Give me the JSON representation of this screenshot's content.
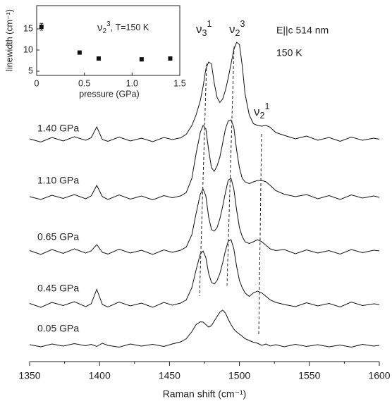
{
  "chart_data": [
    {
      "type": "line",
      "xlabel": "Raman shift (cm⁻¹)",
      "x": [
        1350,
        1358,
        1366,
        1374,
        1382,
        1390,
        1394,
        1398,
        1402,
        1406,
        1414,
        1422,
        1430,
        1438,
        1446,
        1452,
        1458,
        1462,
        1466,
        1469,
        1472,
        1474,
        1476,
        1478,
        1480,
        1482,
        1484,
        1486,
        1488,
        1490,
        1492,
        1494,
        1496,
        1498,
        1500,
        1502,
        1504,
        1507,
        1510,
        1513,
        1516,
        1519,
        1522,
        1526,
        1532,
        1540,
        1548,
        1556,
        1564,
        1572,
        1580,
        1588,
        1596,
        1600
      ],
      "series": [
        {
          "name": "1.40 GPa",
          "color": "#111111",
          "values": [
            63.2,
            62.3,
            63.6,
            62.6,
            63.8,
            62.8,
            63.5,
            66.6,
            63.0,
            62.5,
            63.7,
            62.6,
            63.4,
            62.4,
            63.6,
            63.0,
            63.5,
            64.5,
            67,
            70,
            74,
            78,
            83,
            85,
            84.5,
            79,
            75,
            73.5,
            74.5,
            77,
            80.5,
            84.5,
            88.5,
            90.6,
            90,
            84,
            76,
            70,
            67.5,
            67,
            66.8,
            67,
            66.5,
            65,
            64.2,
            63.2,
            64.0,
            62.8,
            63.6,
            62.5,
            63.7,
            62.8,
            63.4,
            63.1
          ]
        },
        {
          "name": "1.10 GPa",
          "color": "#111111",
          "values": [
            46.8,
            46.0,
            47.2,
            46.3,
            47.4,
            46.2,
            47.0,
            50,
            46.8,
            46.0,
            47.3,
            46.1,
            47.0,
            45.9,
            47.1,
            46.5,
            47.0,
            48,
            52,
            59,
            65,
            67,
            66,
            60,
            55,
            54,
            55.5,
            58,
            62,
            66,
            68.3,
            68.6,
            66.5,
            60,
            55,
            52,
            51,
            50.5,
            51,
            51.4,
            51.4,
            51,
            50,
            48.5,
            47.5,
            46.8,
            47.4,
            46.2,
            47.1,
            46.0,
            47.3,
            46.4,
            47.0,
            46.6
          ]
        },
        {
          "name": "0.65 GPa",
          "color": "#111111",
          "values": [
            31.5,
            30.4,
            31.8,
            30.7,
            32.0,
            30.8,
            31.4,
            33.2,
            31.0,
            30.5,
            31.9,
            30.8,
            31.6,
            30.4,
            31.7,
            31.0,
            31.6,
            32.5,
            36,
            42,
            47.5,
            49,
            47,
            41,
            37.5,
            37,
            38,
            40.5,
            44,
            48,
            51.5,
            52,
            49,
            43,
            38,
            35.5,
            34,
            33.5,
            34,
            34.6,
            34,
            33,
            32,
            31.5,
            31.8,
            30.6,
            31.7,
            30.8,
            31.5,
            30.5,
            31.8,
            30.9,
            31.6,
            31.4
          ]
        },
        {
          "name": "0.45 GPa",
          "color": "#111111",
          "values": [
            16.5,
            15.4,
            16.8,
            15.9,
            17.0,
            15.6,
            16.4,
            20.5,
            16.2,
            15.5,
            16.9,
            15.8,
            16.6,
            15.4,
            16.8,
            16.0,
            16.6,
            17.5,
            21,
            26,
            30.5,
            31.4,
            29.5,
            25,
            22.5,
            22,
            23,
            25,
            28,
            31.5,
            34.2,
            34.6,
            32,
            27,
            23,
            21,
            19.5,
            18.5,
            19.5,
            20,
            19.5,
            18.5,
            17.5,
            16.8,
            16.2,
            15.6,
            16.7,
            15.8,
            16.5,
            15.5,
            16.9,
            15.9,
            16.4,
            16.2
          ]
        },
        {
          "name": "0.05 GPa",
          "color": "#111111",
          "values": [
            4.8,
            4.2,
            5.0,
            4.4,
            5.1,
            4.5,
            4.9,
            4.3,
            5.2,
            4.6,
            4.1,
            5.0,
            4.4,
            4.9,
            4.3,
            5.0,
            5.6,
            6.5,
            8.5,
            10.5,
            11.3,
            11.2,
            10.5,
            9.8,
            10.2,
            11.5,
            12.8,
            14.0,
            14.6,
            13.8,
            12.0,
            10.5,
            9.2,
            8.4,
            7.8,
            7.2,
            6.5,
            6.0,
            5.5,
            5.2,
            4.6,
            5.0,
            4.4,
            4.8,
            4.2,
            4.9,
            4.3,
            4.8,
            4.2,
            4.7,
            4.1,
            4.9,
            4.4,
            4.6
          ]
        }
      ],
      "xlim": [
        1350,
        1600
      ],
      "ylim": [
        0,
        100
      ],
      "xticks": [
        1350,
        1400,
        1450,
        1500,
        1550,
        1600
      ],
      "xminorticks": [
        1375,
        1425,
        1475,
        1525,
        1575
      ],
      "annotations": [
        {
          "text": "E||c 514 nm"
        },
        {
          "text": "150 K"
        },
        {
          "text": "ν",
          "sub": "3",
          "sup": "1"
        },
        {
          "text": "ν",
          "sub": "2",
          "sup": "3"
        },
        {
          "text": "ν",
          "sub": "2",
          "sup": "1"
        }
      ]
    },
    {
      "type": "scatter",
      "xlabel": "pressure (GPa)",
      "ylabel": "linewidth (cm⁻¹)",
      "x": [
        0.05,
        0.45,
        0.65,
        1.1,
        1.4
      ],
      "values": [
        15.5,
        9.4,
        8.0,
        7.8,
        8.0
      ],
      "errors": [
        0.8,
        0.4,
        0.4,
        0.4,
        0.4
      ],
      "color": "#111111",
      "xlim": [
        0,
        1.5
      ],
      "ylim": [
        4,
        20.5
      ],
      "xticks": [
        0,
        {
          "value": 0.5,
          "label": "0.5"
        },
        {
          "value": 1,
          "label": "1.0"
        },
        {
          "value": 1.5,
          "label": "1.5"
        }
      ],
      "yticks": [
        5,
        10,
        15
      ],
      "annotation": {
        "text": "ν",
        "sub": "2",
        "sup": "3",
        "rest": ",  T=150 K"
      }
    }
  ]
}
